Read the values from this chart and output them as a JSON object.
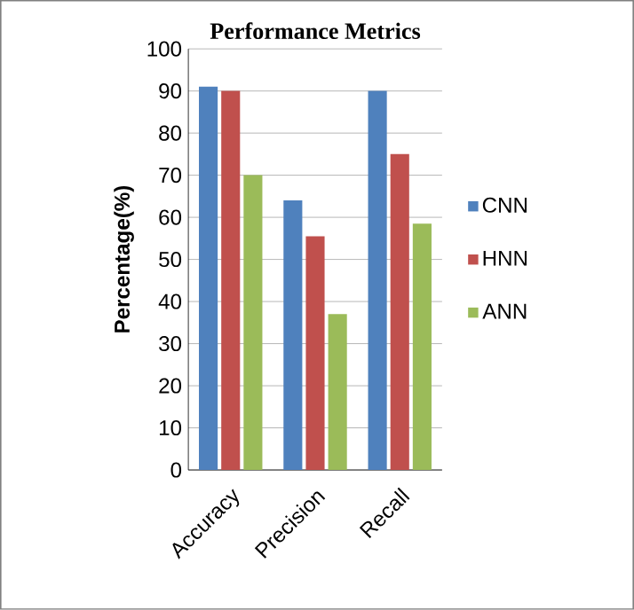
{
  "chart_data": {
    "type": "bar",
    "title": "Performance Metrics",
    "ylabel": "Percentage(%)",
    "categories": [
      "Accuracy",
      "Precision",
      "Recall"
    ],
    "series": [
      {
        "name": "CNN",
        "color": "#4f81bd",
        "values": [
          91,
          64,
          90
        ]
      },
      {
        "name": "HNN",
        "color": "#c0504d",
        "values": [
          90,
          55.5,
          75
        ]
      },
      {
        "name": "ANN",
        "color": "#9bbb59",
        "values": [
          70,
          37,
          58.5
        ]
      }
    ],
    "ylim": [
      0,
      100
    ],
    "yticks": [
      0,
      10,
      20,
      30,
      40,
      50,
      60,
      70,
      80,
      90,
      100
    ],
    "grid": "y",
    "legend": "right"
  }
}
